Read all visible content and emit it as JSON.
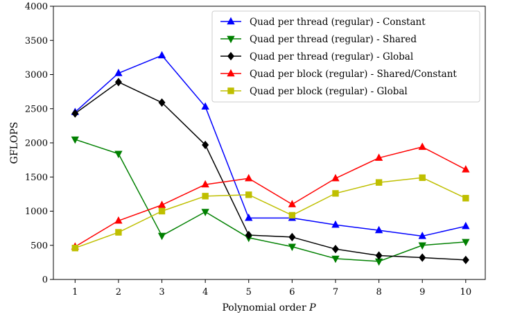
{
  "chart_data": {
    "type": "line",
    "xlabel": "Polynomial order",
    "xlabel_var": "P",
    "ylabel": "GFLOPS",
    "x": [
      1,
      2,
      3,
      4,
      5,
      6,
      7,
      8,
      9,
      10
    ],
    "xlim": [
      0.5,
      10.45
    ],
    "ylim": [
      0,
      4000
    ],
    "yticks": [
      0,
      500,
      1000,
      1500,
      2000,
      2500,
      3000,
      3500,
      4000
    ],
    "grid": false,
    "legend_position": "top-right",
    "series": [
      {
        "name": "Quad per thread (regular) - Constant",
        "color": "#0000ff",
        "marker": "triangle-up",
        "values": [
          2450,
          3020,
          3280,
          2530,
          900,
          900,
          800,
          720,
          635,
          780
        ]
      },
      {
        "name": "Quad per thread (regular) - Shared",
        "color": "#008000",
        "marker": "triangle-down",
        "values": [
          2050,
          1840,
          640,
          990,
          610,
          480,
          305,
          265,
          500,
          550
        ]
      },
      {
        "name": "Quad per thread (regular) - Global",
        "color": "#000000",
        "marker": "diamond",
        "values": [
          2430,
          2890,
          2590,
          1970,
          650,
          620,
          445,
          350,
          320,
          285
        ]
      },
      {
        "name": "Quad per block (regular) - Shared/Constant",
        "color": "#ff0000",
        "marker": "triangle-up",
        "values": [
          480,
          860,
          1090,
          1390,
          1480,
          1100,
          1480,
          1780,
          1940,
          1610
        ]
      },
      {
        "name": "Quad per block (regular) - Global",
        "color": "#bfbf00",
        "marker": "square",
        "values": [
          460,
          690,
          1000,
          1220,
          1240,
          940,
          1260,
          1420,
          1490,
          1190
        ]
      }
    ]
  }
}
